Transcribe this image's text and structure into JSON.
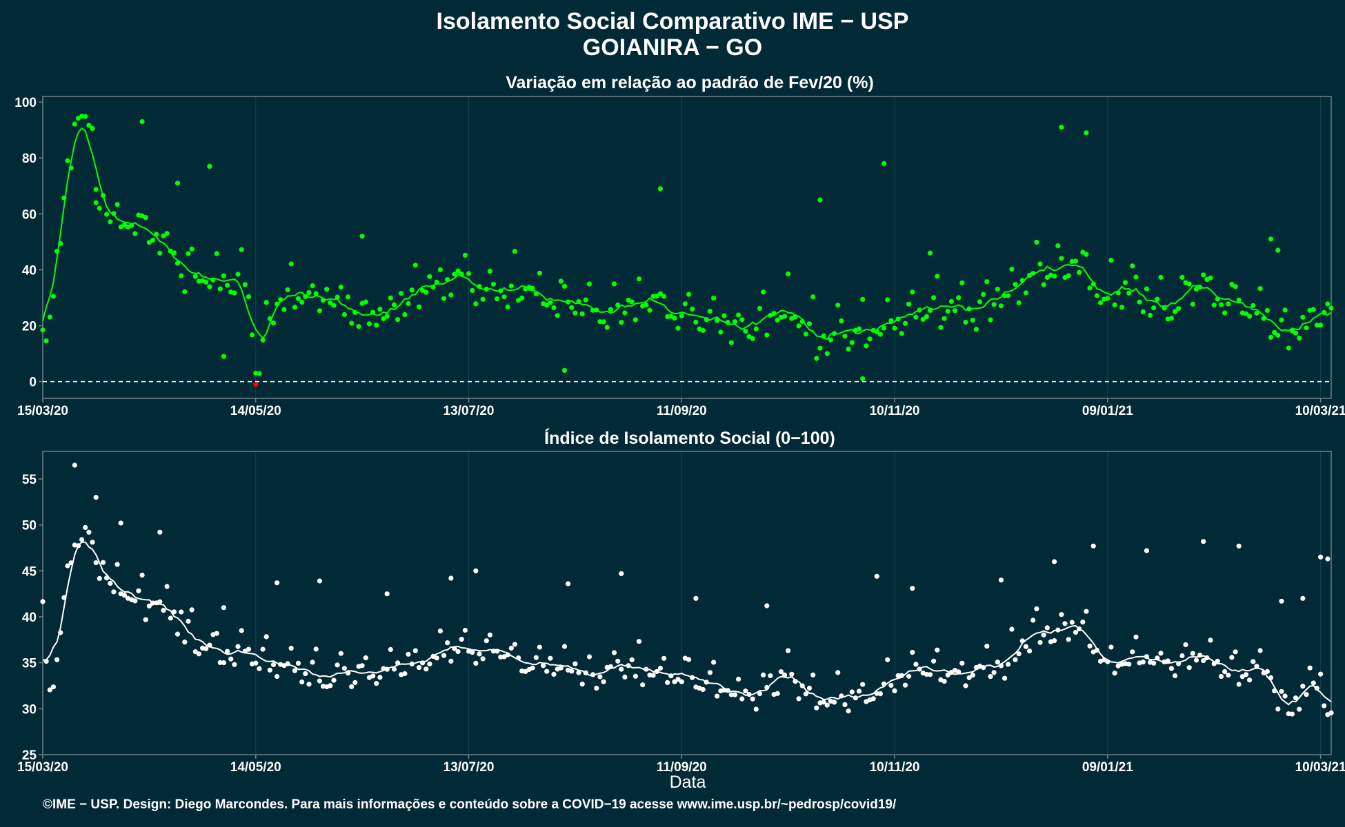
{
  "title": {
    "line1": "Isolamento Social Comparativo IME − USP",
    "line2": "GOIANIRA − GO"
  },
  "footer": "©IME − USP. Design: Diego Marcondes. Para mais informações e conteúdo sobre a COVID−19 acesse www.ime.usp.br/~pedrosp/covid19/",
  "colors": {
    "background": "#022a36",
    "panel_border": "#6f7f86",
    "gridline": "#0f3f4c",
    "variation_series": "#00ff00",
    "negative_point": "#ff0000",
    "index_series": "#ffffff"
  },
  "chart_data": [
    {
      "type": "scatter",
      "title": "Variação em relação ao padrão de Fev/20 (%)",
      "xlabel": "",
      "ylabel": "",
      "x_range": [
        "15/03/20",
        "13/03/21"
      ],
      "x_tick_labels": [
        "15/03/20",
        "14/05/20",
        "13/07/20",
        "11/09/20",
        "10/11/20",
        "09/01/21",
        "10/03/21"
      ],
      "ylim": [
        -6,
        102
      ],
      "y_ticks": [
        0,
        20,
        40,
        60,
        80,
        100
      ],
      "reference_line": {
        "y": 0,
        "style": "dashed"
      },
      "grid": "vertical at date ticks",
      "series": [
        {
          "kind": "daily points",
          "color": "#00ff00",
          "negative_color": "#ff0000"
        },
        {
          "kind": "7-day moving average line",
          "color": "#00ff00"
        }
      ],
      "anchors": [
        {
          "x": "15/03/20",
          "y": 5
        },
        {
          "x": "17/03/20",
          "y": 20
        },
        {
          "x": "19/03/20",
          "y": 43
        },
        {
          "x": "21/03/20",
          "y": 59
        },
        {
          "x": "24/03/20",
          "y": 90
        },
        {
          "x": "27/03/20",
          "y": 96
        },
        {
          "x": "31/03/20",
          "y": 66
        },
        {
          "x": "05/04/20",
          "y": 52
        },
        {
          "x": "10/04/20",
          "y": 55
        },
        {
          "x": "15/04/20",
          "y": 50
        },
        {
          "x": "20/04/20",
          "y": 45
        },
        {
          "x": "27/04/20",
          "y": 36
        },
        {
          "x": "05/05/20",
          "y": 34
        },
        {
          "x": "12/05/20",
          "y": 31
        },
        {
          "x": "14/05/20",
          "y": -1
        },
        {
          "x": "20/05/20",
          "y": 30
        },
        {
          "x": "01/06/20",
          "y": 27
        },
        {
          "x": "10/06/20",
          "y": 24
        },
        {
          "x": "20/06/20",
          "y": 24
        },
        {
          "x": "30/06/20",
          "y": 30
        },
        {
          "x": "10/07/20",
          "y": 36
        },
        {
          "x": "20/07/20",
          "y": 31
        },
        {
          "x": "01/08/20",
          "y": 30
        },
        {
          "x": "10/08/20",
          "y": 24
        },
        {
          "x": "20/08/20",
          "y": 22
        },
        {
          "x": "01/09/20",
          "y": 26
        },
        {
          "x": "11/09/20",
          "y": 24
        },
        {
          "x": "20/09/20",
          "y": 21
        },
        {
          "x": "01/10/20",
          "y": 19
        },
        {
          "x": "10/10/20",
          "y": 24
        },
        {
          "x": "20/10/20",
          "y": 15
        },
        {
          "x": "01/11/20",
          "y": 14
        },
        {
          "x": "10/11/20",
          "y": 20
        },
        {
          "x": "20/11/20",
          "y": 24
        },
        {
          "x": "01/12/20",
          "y": 25
        },
        {
          "x": "10/12/20",
          "y": 27
        },
        {
          "x": "20/12/20",
          "y": 37
        },
        {
          "x": "01/01/21",
          "y": 42
        },
        {
          "x": "09/01/21",
          "y": 26
        },
        {
          "x": "15/01/21",
          "y": 33
        },
        {
          "x": "25/01/21",
          "y": 26
        },
        {
          "x": "05/02/21",
          "y": 31
        },
        {
          "x": "15/02/21",
          "y": 27
        },
        {
          "x": "22/02/21",
          "y": 21
        },
        {
          "x": "28/02/21",
          "y": 12
        },
        {
          "x": "05/03/21",
          "y": 19
        },
        {
          "x": "13/03/21",
          "y": 22
        }
      ],
      "outliers": [
        {
          "x": "30/03/20",
          "y": 64
        },
        {
          "x": "12/04/20",
          "y": 93
        },
        {
          "x": "22/04/20",
          "y": 71
        },
        {
          "x": "01/05/20",
          "y": 77
        },
        {
          "x": "05/05/20",
          "y": 9
        },
        {
          "x": "13/06/20",
          "y": 52
        },
        {
          "x": "09/08/20",
          "y": 4
        },
        {
          "x": "05/09/20",
          "y": 69
        },
        {
          "x": "20/10/20",
          "y": 65
        },
        {
          "x": "07/11/20",
          "y": 78
        },
        {
          "x": "01/11/20",
          "y": 1
        },
        {
          "x": "20/11/20",
          "y": 46
        },
        {
          "x": "27/12/20",
          "y": 91
        },
        {
          "x": "03/01/21",
          "y": 89
        },
        {
          "x": "24/02/21",
          "y": 51
        },
        {
          "x": "26/02/21",
          "y": 47
        }
      ]
    },
    {
      "type": "scatter",
      "title": "Índice de Isolamento Social (0−100)",
      "xlabel": "Data",
      "ylabel": "",
      "x_range": [
        "15/03/20",
        "13/03/21"
      ],
      "x_tick_labels": [
        "15/03/20",
        "14/05/20",
        "13/07/20",
        "11/09/20",
        "10/11/20",
        "09/01/21",
        "10/03/21"
      ],
      "ylim": [
        25,
        58
      ],
      "y_ticks": [
        25,
        30,
        35,
        40,
        45,
        50,
        55
      ],
      "grid": "vertical at date ticks",
      "series": [
        {
          "kind": "daily points",
          "color": "#ffffff"
        },
        {
          "kind": "7-day moving average line",
          "color": "#ffffff"
        }
      ],
      "anchors": [
        {
          "x": "15/03/20",
          "y": 39
        },
        {
          "x": "17/03/20",
          "y": 31
        },
        {
          "x": "19/03/20",
          "y": 36
        },
        {
          "x": "21/03/20",
          "y": 41
        },
        {
          "x": "24/03/20",
          "y": 48
        },
        {
          "x": "27/03/20",
          "y": 49
        },
        {
          "x": "31/03/20",
          "y": 45
        },
        {
          "x": "05/04/20",
          "y": 43
        },
        {
          "x": "10/04/20",
          "y": 42
        },
        {
          "x": "15/04/20",
          "y": 41
        },
        {
          "x": "20/04/20",
          "y": 40
        },
        {
          "x": "27/04/20",
          "y": 37
        },
        {
          "x": "05/05/20",
          "y": 36
        },
        {
          "x": "14/05/20",
          "y": 35
        },
        {
          "x": "20/05/20",
          "y": 34.5
        },
        {
          "x": "01/06/20",
          "y": 33.5
        },
        {
          "x": "10/06/20",
          "y": 33
        },
        {
          "x": "20/06/20",
          "y": 33.5
        },
        {
          "x": "01/07/20",
          "y": 35
        },
        {
          "x": "10/07/20",
          "y": 36.5
        },
        {
          "x": "20/07/20",
          "y": 35.5
        },
        {
          "x": "01/08/20",
          "y": 35
        },
        {
          "x": "10/08/20",
          "y": 33.5
        },
        {
          "x": "20/08/20",
          "y": 33.5
        },
        {
          "x": "01/09/20",
          "y": 34
        },
        {
          "x": "11/09/20",
          "y": 33
        },
        {
          "x": "20/09/20",
          "y": 32
        },
        {
          "x": "01/10/20",
          "y": 31
        },
        {
          "x": "10/10/20",
          "y": 33
        },
        {
          "x": "20/10/20",
          "y": 30.5
        },
        {
          "x": "01/11/20",
          "y": 30.5
        },
        {
          "x": "10/11/20",
          "y": 32.5
        },
        {
          "x": "20/11/20",
          "y": 33.5
        },
        {
          "x": "01/12/20",
          "y": 33.5
        },
        {
          "x": "10/12/20",
          "y": 34
        },
        {
          "x": "20/12/20",
          "y": 37.5
        },
        {
          "x": "01/01/21",
          "y": 38.5
        },
        {
          "x": "09/01/21",
          "y": 34
        },
        {
          "x": "15/01/21",
          "y": 35.5
        },
        {
          "x": "25/01/21",
          "y": 34
        },
        {
          "x": "05/02/21",
          "y": 35
        },
        {
          "x": "15/02/21",
          "y": 33
        },
        {
          "x": "22/02/21",
          "y": 35
        },
        {
          "x": "28/02/21",
          "y": 29.5
        },
        {
          "x": "05/03/21",
          "y": 31.5
        },
        {
          "x": "10/03/21",
          "y": 32
        },
        {
          "x": "13/03/21",
          "y": 28
        }
      ],
      "outliers": [
        {
          "x": "24/03/20",
          "y": 56.5
        },
        {
          "x": "30/03/20",
          "y": 53
        },
        {
          "x": "06/04/20",
          "y": 50.2
        },
        {
          "x": "17/04/20",
          "y": 49.2
        },
        {
          "x": "05/05/20",
          "y": 41
        },
        {
          "x": "20/05/20",
          "y": 43.7
        },
        {
          "x": "01/06/20",
          "y": 43.9
        },
        {
          "x": "20/06/20",
          "y": 42.5
        },
        {
          "x": "08/07/20",
          "y": 44.2
        },
        {
          "x": "15/07/20",
          "y": 45
        },
        {
          "x": "10/08/20",
          "y": 43.6
        },
        {
          "x": "25/08/20",
          "y": 44.7
        },
        {
          "x": "15/09/20",
          "y": 42
        },
        {
          "x": "05/10/20",
          "y": 41.2
        },
        {
          "x": "05/11/20",
          "y": 44.4
        },
        {
          "x": "15/11/20",
          "y": 43.1
        },
        {
          "x": "10/12/20",
          "y": 44
        },
        {
          "x": "25/12/20",
          "y": 46
        },
        {
          "x": "05/01/21",
          "y": 47.7
        },
        {
          "x": "20/01/21",
          "y": 47.2
        },
        {
          "x": "05/02/21",
          "y": 48.2
        },
        {
          "x": "15/02/21",
          "y": 47.7
        },
        {
          "x": "27/02/21",
          "y": 41.7
        },
        {
          "x": "05/03/21",
          "y": 42
        },
        {
          "x": "10/03/21",
          "y": 46.5
        },
        {
          "x": "12/03/21",
          "y": 46.3
        }
      ]
    }
  ]
}
